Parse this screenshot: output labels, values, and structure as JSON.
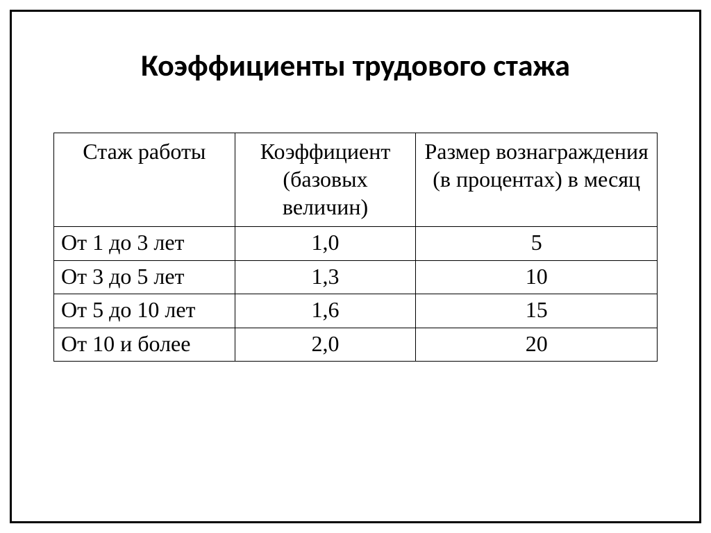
{
  "title": "Коэффициенты трудового стажа",
  "table": {
    "type": "table",
    "columns": [
      {
        "label": "Стаж работы",
        "width_pct": 30,
        "align": "left"
      },
      {
        "label": "Коэффициент (базовых величин)",
        "width_pct": 30,
        "align": "center"
      },
      {
        "label": "Размер вознаграждения (в процентах) в месяц",
        "width_pct": 40,
        "align": "center"
      }
    ],
    "rows": [
      {
        "work_experience": "От 1 до 3 лет",
        "coefficient": "1,0",
        "reward_pct": "5"
      },
      {
        "work_experience": "От 3 до 5 лет",
        "coefficient": "1,3",
        "reward_pct": "10"
      },
      {
        "work_experience": "От 5 до 10 лет",
        "coefficient": "1,6",
        "reward_pct": "15"
      },
      {
        "work_experience": "От 10 и более",
        "coefficient": "2,0",
        "reward_pct": "20"
      }
    ],
    "border_color": "#000000",
    "background_color": "#ffffff",
    "header_fontsize_pt": 24,
    "cell_fontsize_pt": 24,
    "title_fontsize_pt": 33,
    "font_family_title": "Calibri",
    "font_family_body": "Times New Roman"
  }
}
